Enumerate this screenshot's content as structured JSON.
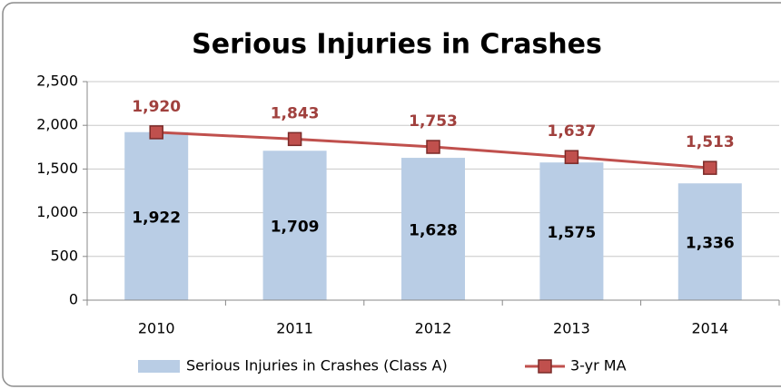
{
  "chart_data": {
    "type": "bar",
    "title": "Serious Injuries in Crashes",
    "categories": [
      "2010",
      "2011",
      "2012",
      "2013",
      "2014"
    ],
    "series": [
      {
        "name": "Serious Injuries in Crashes (Class A)",
        "type": "bar",
        "color": "#b9cde5",
        "values": [
          1922,
          1709,
          1628,
          1575,
          1336
        ],
        "value_labels": [
          "1,922",
          "1,709",
          "1,628",
          "1,575",
          "1,336"
        ]
      },
      {
        "name": "3-yr MA",
        "type": "line",
        "color": "#c0504d",
        "values": [
          1920,
          1843,
          1753,
          1637,
          1513
        ],
        "value_labels": [
          "1,920",
          "1,843",
          "1,753",
          "1,637",
          "1,513"
        ]
      }
    ],
    "ylim": [
      0,
      2500
    ],
    "yticks": [
      0,
      500,
      {
        "value": 1000,
        "label": "1,000"
      },
      {
        "value": 1500,
        "label": "1,500"
      },
      {
        "value": 2000,
        "label": "2,000"
      },
      {
        "value": 2500,
        "label": "2,500"
      }
    ],
    "grid": true,
    "legend": "bottom"
  }
}
